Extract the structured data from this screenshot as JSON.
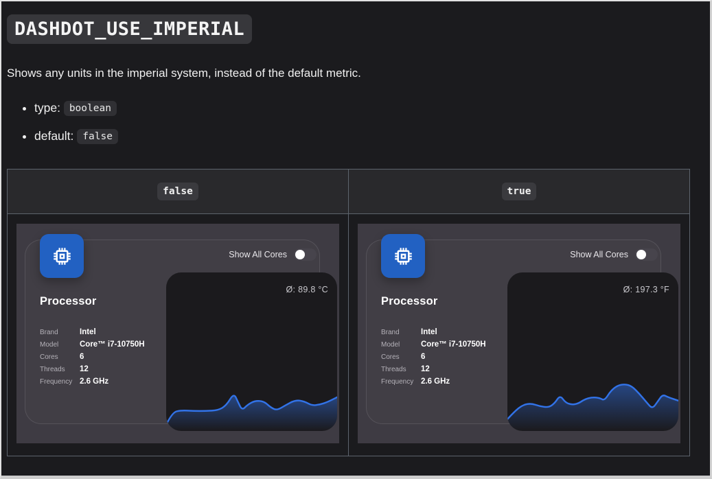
{
  "page": {
    "title": "DASHDOT_USE_IMPERIAL",
    "description": "Shows any units in the imperial system, instead of the default metric.",
    "bullets": [
      {
        "label": "type:",
        "code": "boolean"
      },
      {
        "label": "default:",
        "code": "false"
      }
    ]
  },
  "colors": {
    "page_background": "#1b1b1e",
    "dashboard_background": "#3e3b43",
    "chart_panel_background": "#1b1a1d",
    "accent_blue": "#2261c2",
    "chart_line": "#3273e8"
  },
  "table": {
    "headers": [
      "false",
      "true"
    ],
    "cells": [
      {
        "card": {
          "toggle_label": "Show All Cores",
          "toggle_state": "off",
          "title": "Processor",
          "details": [
            {
              "label": "Brand",
              "value": "Intel"
            },
            {
              "label": "Model",
              "value": "Core™ i7-10750H"
            },
            {
              "label": "Cores",
              "value": "6"
            },
            {
              "label": "Threads",
              "value": "12"
            },
            {
              "label": "Frequency",
              "value": "2.6 GHz"
            }
          ],
          "chart": {
            "type": "area",
            "average_label": "Ø: 89.8 °C",
            "unit": "°C",
            "points": [
              [
                0,
                221
              ],
              [
                9,
                203
              ],
              [
                22,
                200
              ],
              [
                40,
                201
              ],
              [
                58,
                201
              ],
              [
                76,
                200
              ],
              [
                88,
                193
              ],
              [
                99,
                175
              ],
              [
                105,
                188
              ],
              [
                111,
                200
              ],
              [
                119,
                192
              ],
              [
                130,
                186
              ],
              [
                143,
                187
              ],
              [
                153,
                196
              ],
              [
                162,
                200
              ],
              [
                174,
                193
              ],
              [
                189,
                185
              ],
              [
                202,
                187
              ],
              [
                213,
                193
              ],
              [
                224,
                192
              ],
              [
                236,
                188
              ],
              [
                250,
                181
              ]
            ]
          }
        }
      },
      {
        "card": {
          "toggle_label": "Show All Cores",
          "toggle_state": "off",
          "title": "Processor",
          "details": [
            {
              "label": "Brand",
              "value": "Intel"
            },
            {
              "label": "Model",
              "value": "Core™ i7-10750H"
            },
            {
              "label": "Cores",
              "value": "6"
            },
            {
              "label": "Threads",
              "value": "12"
            },
            {
              "label": "Frequency",
              "value": "2.6 GHz"
            }
          ],
          "chart": {
            "type": "area",
            "average_label": "Ø: 197.3 °F",
            "unit": "°F",
            "points": [
              [
                0,
                213
              ],
              [
                11,
                201
              ],
              [
                23,
                192
              ],
              [
                35,
                190
              ],
              [
                47,
                194
              ],
              [
                60,
                196
              ],
              [
                69,
                190
              ],
              [
                77,
                178
              ],
              [
                85,
                189
              ],
              [
                95,
                192
              ],
              [
                104,
                190
              ],
              [
                113,
                184
              ],
              [
                124,
                181
              ],
              [
                135,
                182
              ],
              [
                142,
                186
              ],
              [
                151,
                172
              ],
              [
                161,
                164
              ],
              [
                172,
                162
              ],
              [
                182,
                165
              ],
              [
                193,
                176
              ],
              [
                204,
                189
              ],
              [
                212,
                198
              ],
              [
                220,
                187
              ],
              [
                227,
                177
              ],
              [
                235,
                181
              ],
              [
                250,
                186
              ]
            ]
          }
        }
      }
    ]
  }
}
